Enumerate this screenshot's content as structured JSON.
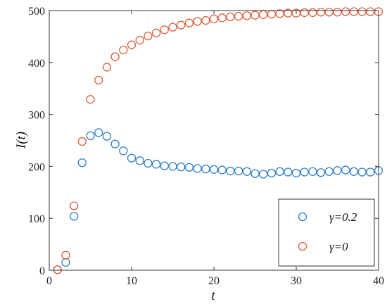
{
  "chart_data": {
    "type": "scatter",
    "xlabel": "t",
    "ylabel": "I(t)",
    "xlim": [
      0,
      40
    ],
    "ylim": [
      0,
      500
    ],
    "xticks": [
      0,
      10,
      20,
      30,
      40
    ],
    "yticks": [
      0,
      100,
      200,
      300,
      400,
      500
    ],
    "xtick_labels": [
      "0",
      "10",
      "20",
      "30",
      "40"
    ],
    "ytick_labels": [
      "0",
      "100",
      "200",
      "300",
      "400",
      "500"
    ],
    "grid": false,
    "legend_position": "bottom-right",
    "marker": "open-circle",
    "series": [
      {
        "name": "γ=0.2",
        "color": "#2f7fc1",
        "x": [
          1,
          2,
          3,
          4,
          5,
          6,
          7,
          8,
          9,
          10,
          11,
          12,
          13,
          14,
          15,
          16,
          17,
          18,
          19,
          20,
          21,
          22,
          23,
          24,
          25,
          26,
          27,
          28,
          29,
          30,
          31,
          32,
          33,
          34,
          35,
          36,
          37,
          38,
          39,
          40
        ],
        "y": [
          1,
          15,
          104,
          207,
          259,
          265,
          258,
          243,
          230,
          216,
          211,
          206,
          204,
          201,
          200,
          199,
          198,
          196,
          195,
          194,
          193,
          191,
          191,
          190,
          186,
          185,
          187,
          190,
          189,
          187,
          189,
          190,
          188,
          190,
          192,
          193,
          190,
          189,
          189,
          192
        ]
      },
      {
        "name": "γ=0",
        "color": "#d95f3b",
        "x": [
          1,
          2,
          3,
          4,
          5,
          6,
          7,
          8,
          9,
          10,
          11,
          12,
          13,
          14,
          15,
          16,
          17,
          18,
          19,
          20,
          21,
          22,
          23,
          24,
          25,
          26,
          27,
          28,
          29,
          30,
          31,
          32,
          33,
          34,
          35,
          36,
          37,
          38,
          39,
          40
        ],
        "y": [
          1,
          29,
          124,
          248,
          329,
          366,
          391,
          411,
          424,
          434,
          443,
          451,
          457,
          463,
          468,
          472,
          476,
          479,
          481,
          484,
          486,
          488,
          489,
          490,
          491,
          492,
          493,
          494,
          495,
          495,
          496,
          496,
          497,
          497,
          497,
          498,
          498,
          498,
          498,
          498
        ]
      }
    ]
  }
}
